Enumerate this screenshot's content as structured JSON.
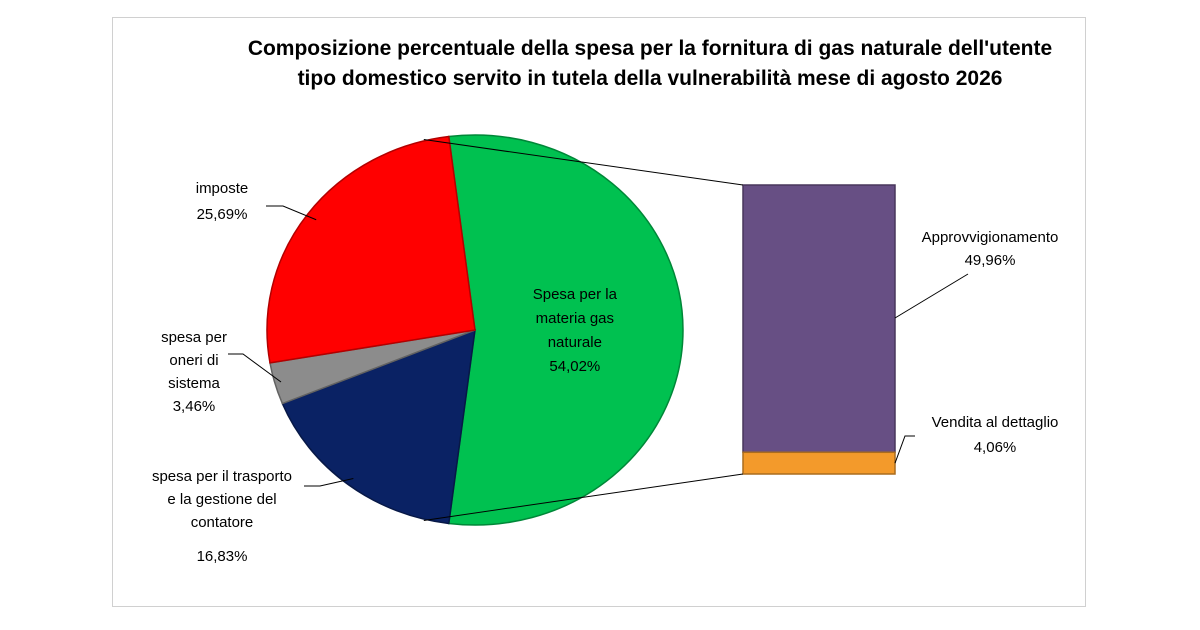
{
  "chart_data": {
    "type": "bar-of-pie",
    "title": "Composizione percentuale della spesa per la fornitura di gas naturale dell'utente tipo domestico servito in tutela della vulnerabilità mese di agosto 2026",
    "pie": {
      "slices": [
        {
          "label_lines": [
            "Spesa per la",
            "materia gas",
            "naturale"
          ],
          "value_label": "54,02%",
          "value": 54.02,
          "color": "#00c150"
        },
        {
          "label_lines": [
            "spesa per il trasporto",
            "e la gestione del",
            "contatore"
          ],
          "value_label": "16,83%",
          "value": 16.83,
          "color": "#0a2264"
        },
        {
          "label_lines": [
            "spesa per",
            "oneri di",
            "sistema"
          ],
          "value_label": "3,46%",
          "value": 3.46,
          "color": "#8c8c8c"
        },
        {
          "label_lines": [
            "imposte"
          ],
          "value_label": "25,69%",
          "value": 25.69,
          "color": "#ff0000"
        }
      ]
    },
    "bar": {
      "segments": [
        {
          "label": "Approvvigionamento",
          "value_label": "49,96%",
          "value": 49.96,
          "color": "#674f84"
        },
        {
          "label": "Vendita al dettaglio",
          "value_label": "4,06%",
          "value": 4.06,
          "color": "#f39a2b"
        }
      ]
    }
  }
}
